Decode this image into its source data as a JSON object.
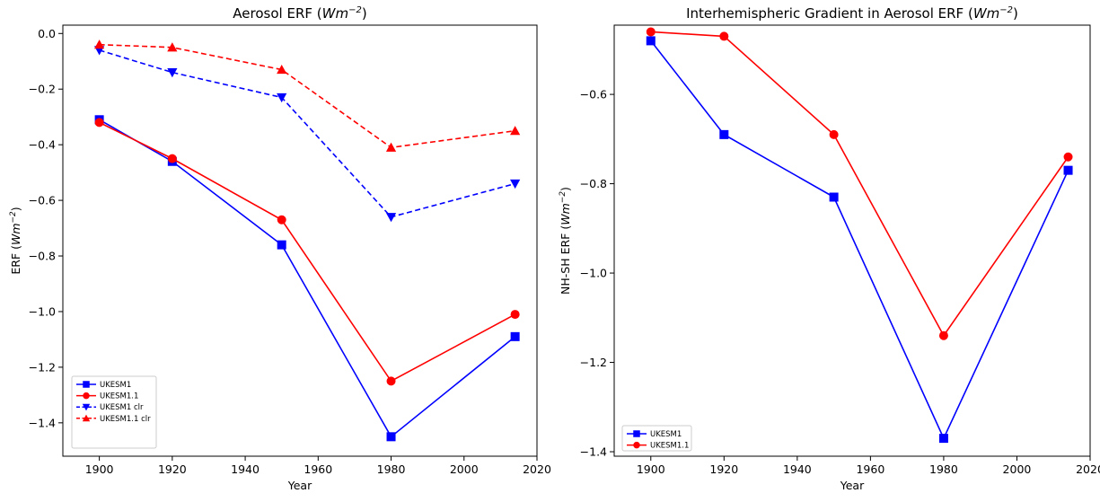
{
  "chart_data": [
    {
      "type": "line",
      "title": "Aerosol ERF",
      "title_unit": "Wm",
      "title_unit_exp": "−2",
      "xlabel": "Year",
      "ylabel": "ERF",
      "ylabel_unit": "Wm",
      "ylabel_unit_exp": "−2",
      "xlim": [
        1890,
        2020
      ],
      "ylim": [
        -1.52,
        0.03
      ],
      "xticks": [
        1900,
        1920,
        1940,
        1960,
        1980,
        2000,
        2020
      ],
      "yticks": [
        0.0,
        -0.2,
        -0.4,
        -0.6,
        -0.8,
        -1.0,
        -1.2,
        -1.4
      ],
      "ytick_labels": [
        "0.0",
        "−0.2",
        "−0.4",
        "−0.6",
        "−0.8",
        "−1.0",
        "−1.2",
        "−1.4"
      ],
      "grid": false,
      "legend_position": "lower-left",
      "series": [
        {
          "name": "UKESM1",
          "color": "#0000ff",
          "dash": "solid",
          "marker": "square",
          "x": [
            1900,
            1920,
            1950,
            1980,
            2014
          ],
          "y": [
            -0.31,
            -0.46,
            -0.76,
            -1.45,
            -1.09
          ]
        },
        {
          "name": "UKESM1.1",
          "color": "#ff0000",
          "dash": "solid",
          "marker": "circle",
          "x": [
            1900,
            1920,
            1950,
            1980,
            2014
          ],
          "y": [
            -0.32,
            -0.45,
            -0.67,
            -1.25,
            -1.01
          ]
        },
        {
          "name": "UKESM1 clr",
          "color": "#0000ff",
          "dash": "dashed",
          "marker": "triangle-down",
          "x": [
            1900,
            1920,
            1950,
            1980,
            2014
          ],
          "y": [
            -0.06,
            -0.14,
            -0.23,
            -0.66,
            -0.54
          ]
        },
        {
          "name": "UKESM1.1 clr",
          "color": "#ff0000",
          "dash": "dashed",
          "marker": "triangle-up",
          "x": [
            1900,
            1920,
            1950,
            1980,
            2014
          ],
          "y": [
            -0.04,
            -0.05,
            -0.13,
            -0.41,
            -0.35
          ]
        }
      ]
    },
    {
      "type": "line",
      "title": "Interhemispheric Gradient in Aerosol ERF",
      "title_unit": "Wm",
      "title_unit_exp": "−2",
      "xlabel": "Year",
      "ylabel": "NH-SH ERF",
      "ylabel_unit": "Wm",
      "ylabel_unit_exp": "−2",
      "xlim": [
        1890,
        2020
      ],
      "ylim": [
        -1.41,
        -0.445
      ],
      "xticks": [
        1900,
        1920,
        1940,
        1960,
        1980,
        2000,
        2020
      ],
      "yticks": [
        -0.6,
        -0.8,
        -1.0,
        -1.2,
        -1.4
      ],
      "ytick_labels": [
        "−0.6",
        "−0.8",
        "−1.0",
        "−1.2",
        "−1.4"
      ],
      "grid": false,
      "legend_position": "lower-left",
      "series": [
        {
          "name": "UKESM1",
          "color": "#0000ff",
          "dash": "solid",
          "marker": "square",
          "x": [
            1900,
            1920,
            1950,
            1980,
            2014
          ],
          "y": [
            -0.48,
            -0.69,
            -0.83,
            -1.37,
            -0.77
          ]
        },
        {
          "name": "UKESM1.1",
          "color": "#ff0000",
          "dash": "solid",
          "marker": "circle",
          "x": [
            1900,
            1920,
            1950,
            1980,
            2014
          ],
          "y": [
            -0.46,
            -0.47,
            -0.69,
            -1.14,
            -0.74
          ]
        }
      ]
    }
  ]
}
